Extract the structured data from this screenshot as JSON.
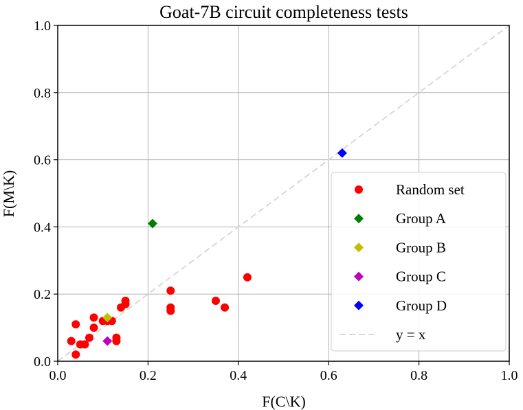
{
  "chart_data": {
    "type": "scatter",
    "title": "Goat-7B circuit completeness tests",
    "xlabel": "F(C\\K)",
    "ylabel": "F(M\\K)",
    "xlim": [
      0.0,
      1.0
    ],
    "ylim": [
      0.0,
      1.0
    ],
    "xticks": [
      "0.0",
      "0.2",
      "0.4",
      "0.6",
      "0.8",
      "1.0"
    ],
    "yticks": [
      "0.0",
      "0.2",
      "0.4",
      "0.6",
      "0.8",
      "1.0"
    ],
    "grid": true,
    "legend_position": "right",
    "series": [
      {
        "name": "Random set",
        "marker": "circle",
        "color": "#ff0000",
        "points": [
          [
            0.03,
            0.06
          ],
          [
            0.04,
            0.11
          ],
          [
            0.04,
            0.02
          ],
          [
            0.05,
            0.05
          ],
          [
            0.06,
            0.05
          ],
          [
            0.07,
            0.07
          ],
          [
            0.08,
            0.13
          ],
          [
            0.08,
            0.1
          ],
          [
            0.1,
            0.12
          ],
          [
            0.11,
            0.12
          ],
          [
            0.12,
            0.12
          ],
          [
            0.13,
            0.07
          ],
          [
            0.13,
            0.06
          ],
          [
            0.14,
            0.16
          ],
          [
            0.15,
            0.18
          ],
          [
            0.15,
            0.17
          ],
          [
            0.25,
            0.21
          ],
          [
            0.25,
            0.16
          ],
          [
            0.25,
            0.15
          ],
          [
            0.35,
            0.18
          ],
          [
            0.37,
            0.16
          ],
          [
            0.42,
            0.25
          ]
        ]
      },
      {
        "name": "Group A",
        "marker": "diamond",
        "color": "#008000",
        "points": [
          [
            0.21,
            0.41
          ]
        ]
      },
      {
        "name": "Group B",
        "marker": "diamond",
        "color": "#bfbf00",
        "points": [
          [
            0.11,
            0.13
          ]
        ]
      },
      {
        "name": "Group C",
        "marker": "diamond",
        "color": "#bf00bf",
        "points": [
          [
            0.11,
            0.06
          ]
        ]
      },
      {
        "name": "Group D",
        "marker": "diamond",
        "color": "#0000ff",
        "points": [
          [
            0.63,
            0.62
          ]
        ]
      }
    ],
    "reference_line": {
      "name": "y = x",
      "style": "dashed",
      "color": "#d9d9d9",
      "from": [
        0,
        0
      ],
      "to": [
        1,
        1
      ]
    }
  }
}
